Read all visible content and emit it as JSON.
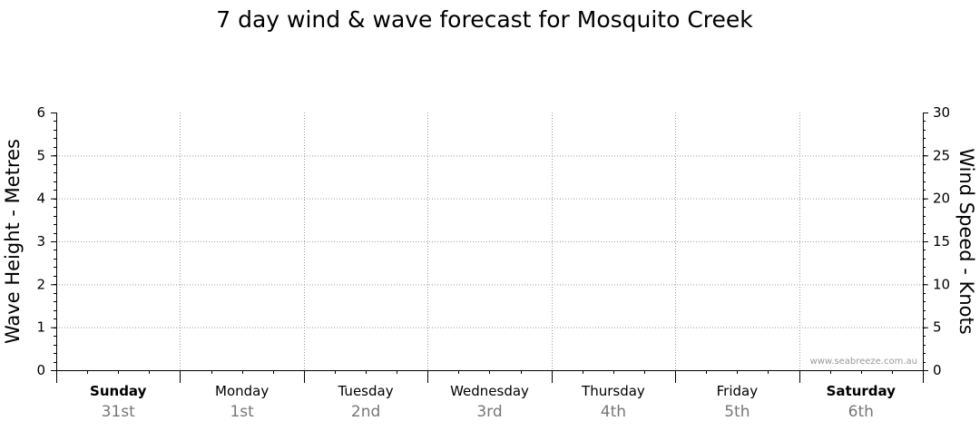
{
  "chart_data": {
    "type": "line",
    "title": "7 day wind & wave forecast for Mosquito Creek",
    "ylabel_left": "Wave Height - Metres",
    "ylabel_right": "Wind Speed - Knots",
    "ylim_left": [
      0,
      6
    ],
    "ylim_right": [
      0,
      30
    ],
    "yticks_left": [
      "0",
      "1",
      "2",
      "3",
      "4",
      "5",
      "6"
    ],
    "yticks_right": [
      "0",
      "5",
      "10",
      "15",
      "20",
      "25",
      "30"
    ],
    "grid": true,
    "days": [
      {
        "name": "Sunday",
        "date": "31st",
        "bold": true
      },
      {
        "name": "Monday",
        "date": "1st",
        "bold": false
      },
      {
        "name": "Tuesday",
        "date": "2nd",
        "bold": false
      },
      {
        "name": "Wednesday",
        "date": "3rd",
        "bold": false
      },
      {
        "name": "Thursday",
        "date": "4th",
        "bold": false
      },
      {
        "name": "Friday",
        "date": "5th",
        "bold": false
      },
      {
        "name": "Saturday",
        "date": "6th",
        "bold": true
      }
    ],
    "series": [],
    "watermark": "www.seabreeze.com.au"
  }
}
